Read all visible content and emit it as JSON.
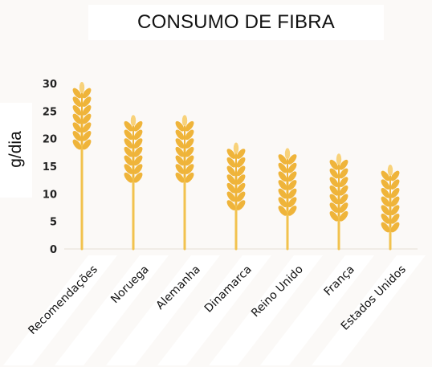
{
  "chart_data": {
    "type": "bar",
    "title": "CONSUMO DE FIBRA",
    "ylabel": "g/dia",
    "xlabel": "",
    "categories": [
      "Recomendações",
      "Noruega",
      "Alemanha",
      "Dinamarca",
      "Reino Unido",
      "França",
      "Estados Unidos"
    ],
    "values": [
      30,
      24,
      24,
      19,
      18,
      17,
      15
    ],
    "ylim": [
      0,
      30
    ],
    "yticks": [
      0,
      5,
      10,
      15,
      20,
      25,
      30
    ],
    "grid": false,
    "legend": "none",
    "mark_style": "wheat-stalk",
    "colors": {
      "stalk": "#f2c24e",
      "grain": "#efb43a",
      "grain_highlight": "#f8d27a"
    }
  }
}
